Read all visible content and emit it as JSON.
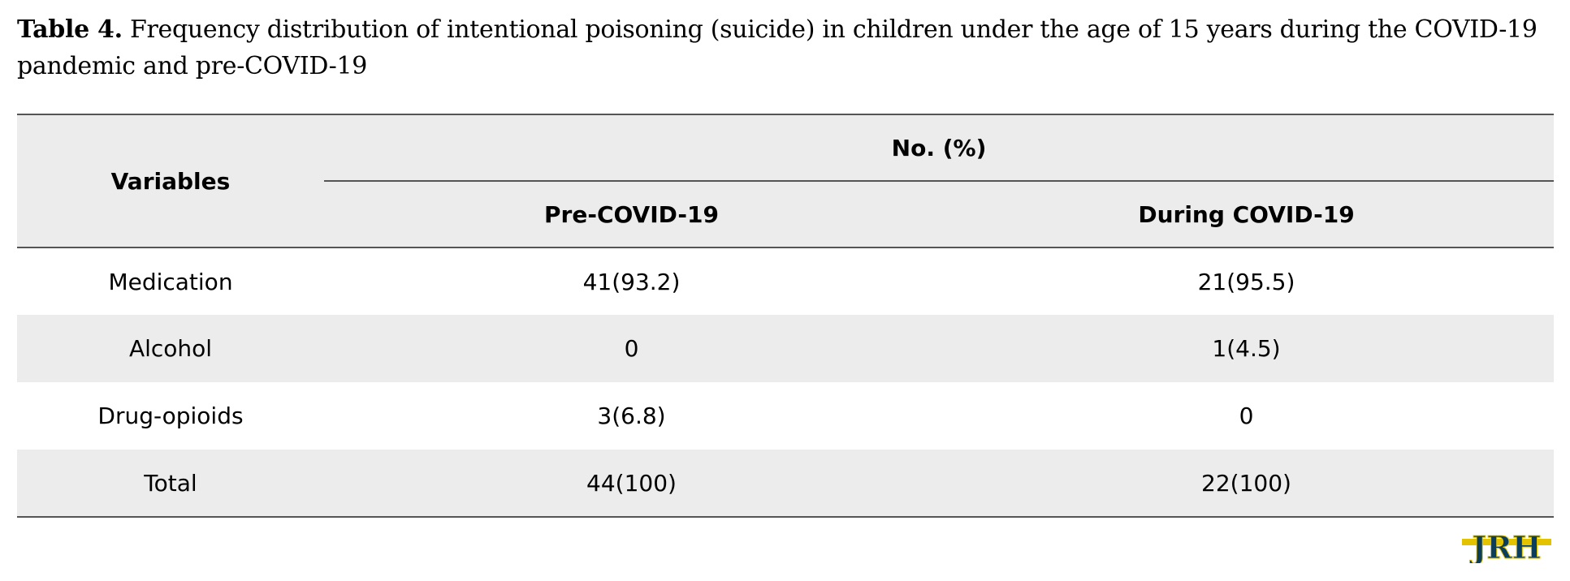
{
  "caption": {
    "label": "Table 4.",
    "text": "Frequency distribution of intentional poisoning (suicide) in children under the age of 15 years during the COVID-19 pandemic and pre-COVID-19"
  },
  "table": {
    "header": {
      "variables": "Variables",
      "group": "No. (%)",
      "pre": "Pre-COVID-19",
      "during": "During COVID-19"
    },
    "rows": [
      {
        "variable": "Medication",
        "pre": "41(93.2)",
        "during": "21(95.5)"
      },
      {
        "variable": "Alcohol",
        "pre": "0",
        "during": "1(4.5)"
      },
      {
        "variable": "Drug-opioids",
        "pre": "3(6.8)",
        "during": "0"
      },
      {
        "variable": "Total",
        "pre": "44(100)",
        "during": "22(100)"
      }
    ]
  },
  "logo": {
    "text": "JRH",
    "colors": {
      "primary": "#0b3d5c",
      "accent": "#e3c200"
    }
  }
}
